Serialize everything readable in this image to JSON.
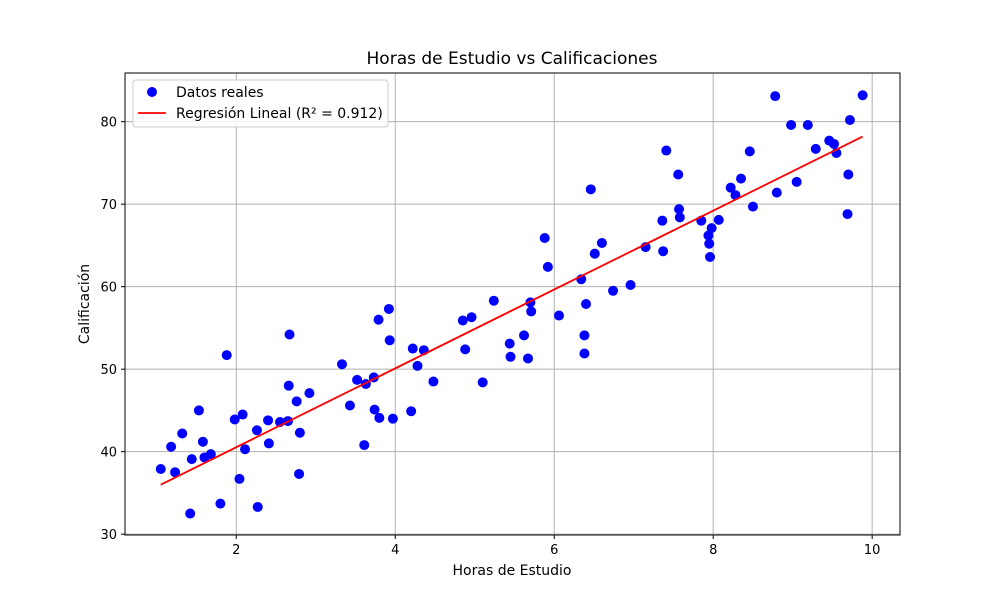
{
  "chart_data": {
    "type": "scatter",
    "title": "Horas de Estudio vs Calificaciones",
    "xlabel": "Horas de Estudio",
    "ylabel": "Calificación",
    "xlim": [
      0.6,
      10.35
    ],
    "ylim": [
      29.9,
      85.9
    ],
    "xticks": [
      2,
      4,
      6,
      8,
      10
    ],
    "yticks": [
      30,
      40,
      50,
      60,
      70,
      80
    ],
    "grid": true,
    "legend_position": "top-left",
    "legend": [
      {
        "label": "Datos reales",
        "kind": "marker",
        "color": "#0000ff"
      },
      {
        "label": "Regresión Lineal (R² = 0.912)",
        "kind": "line",
        "color": "#ff0000"
      }
    ],
    "series": [
      {
        "name": "Datos reales",
        "type": "scatter",
        "color": "#0000ff",
        "points": [
          [
            1.05,
            37.9
          ],
          [
            1.18,
            40.6
          ],
          [
            1.23,
            37.5
          ],
          [
            1.32,
            42.2
          ],
          [
            1.42,
            32.5
          ],
          [
            1.44,
            39.1
          ],
          [
            1.53,
            45.0
          ],
          [
            1.58,
            41.2
          ],
          [
            1.6,
            39.3
          ],
          [
            1.68,
            39.7
          ],
          [
            1.8,
            33.7
          ],
          [
            1.88,
            51.7
          ],
          [
            1.98,
            43.9
          ],
          [
            2.04,
            36.7
          ],
          [
            2.08,
            44.5
          ],
          [
            2.11,
            40.3
          ],
          [
            2.26,
            42.6
          ],
          [
            2.27,
            33.3
          ],
          [
            2.4,
            43.8
          ],
          [
            2.41,
            41.0
          ],
          [
            2.55,
            43.6
          ],
          [
            2.65,
            43.7
          ],
          [
            2.66,
            48.0
          ],
          [
            2.67,
            54.2
          ],
          [
            2.76,
            46.1
          ],
          [
            2.79,
            37.3
          ],
          [
            2.8,
            42.3
          ],
          [
            2.92,
            47.1
          ],
          [
            3.33,
            50.6
          ],
          [
            3.43,
            45.6
          ],
          [
            3.52,
            48.7
          ],
          [
            3.61,
            40.8
          ],
          [
            3.63,
            48.2
          ],
          [
            3.73,
            49.0
          ],
          [
            3.74,
            45.1
          ],
          [
            3.79,
            56.0
          ],
          [
            3.8,
            44.1
          ],
          [
            3.92,
            57.3
          ],
          [
            3.93,
            53.5
          ],
          [
            3.97,
            44.0
          ],
          [
            4.2,
            44.9
          ],
          [
            4.22,
            52.5
          ],
          [
            4.28,
            50.4
          ],
          [
            4.36,
            52.3
          ],
          [
            4.48,
            48.5
          ],
          [
            4.85,
            55.9
          ],
          [
            4.88,
            52.4
          ],
          [
            4.96,
            56.3
          ],
          [
            5.1,
            48.4
          ],
          [
            5.24,
            58.3
          ],
          [
            5.44,
            53.1
          ],
          [
            5.45,
            51.5
          ],
          [
            5.62,
            54.1
          ],
          [
            5.67,
            51.3
          ],
          [
            5.7,
            58.1
          ],
          [
            5.71,
            57.0
          ],
          [
            5.88,
            65.9
          ],
          [
            5.92,
            62.4
          ],
          [
            6.06,
            56.5
          ],
          [
            6.34,
            60.9
          ],
          [
            6.38,
            54.1
          ],
          [
            6.38,
            51.9
          ],
          [
            6.4,
            57.9
          ],
          [
            6.46,
            71.8
          ],
          [
            6.51,
            64.0
          ],
          [
            6.6,
            65.3
          ],
          [
            6.74,
            59.5
          ],
          [
            6.96,
            60.2
          ],
          [
            7.15,
            64.8
          ],
          [
            7.36,
            68.0
          ],
          [
            7.37,
            64.3
          ],
          [
            7.41,
            76.5
          ],
          [
            7.56,
            73.6
          ],
          [
            7.57,
            69.4
          ],
          [
            7.58,
            68.4
          ],
          [
            7.85,
            68.0
          ],
          [
            7.94,
            66.2
          ],
          [
            7.95,
            65.2
          ],
          [
            7.96,
            63.6
          ],
          [
            7.98,
            67.1
          ],
          [
            8.07,
            68.1
          ],
          [
            8.22,
            72.0
          ],
          [
            8.28,
            71.1
          ],
          [
            8.35,
            73.1
          ],
          [
            8.46,
            76.4
          ],
          [
            8.5,
            69.7
          ],
          [
            8.78,
            83.1
          ],
          [
            8.8,
            71.4
          ],
          [
            8.98,
            79.6
          ],
          [
            9.05,
            72.7
          ],
          [
            9.19,
            79.6
          ],
          [
            9.29,
            76.7
          ],
          [
            9.46,
            77.7
          ],
          [
            9.52,
            77.3
          ],
          [
            9.55,
            76.2
          ],
          [
            9.69,
            68.8
          ],
          [
            9.7,
            73.6
          ],
          [
            9.72,
            80.2
          ],
          [
            9.88,
            83.2
          ]
        ]
      },
      {
        "name": "Regresión Lineal (R² = 0.912)",
        "type": "line",
        "color": "#ff0000",
        "points": [
          [
            1.05,
            36.0
          ],
          [
            9.88,
            78.2
          ]
        ]
      }
    ]
  }
}
